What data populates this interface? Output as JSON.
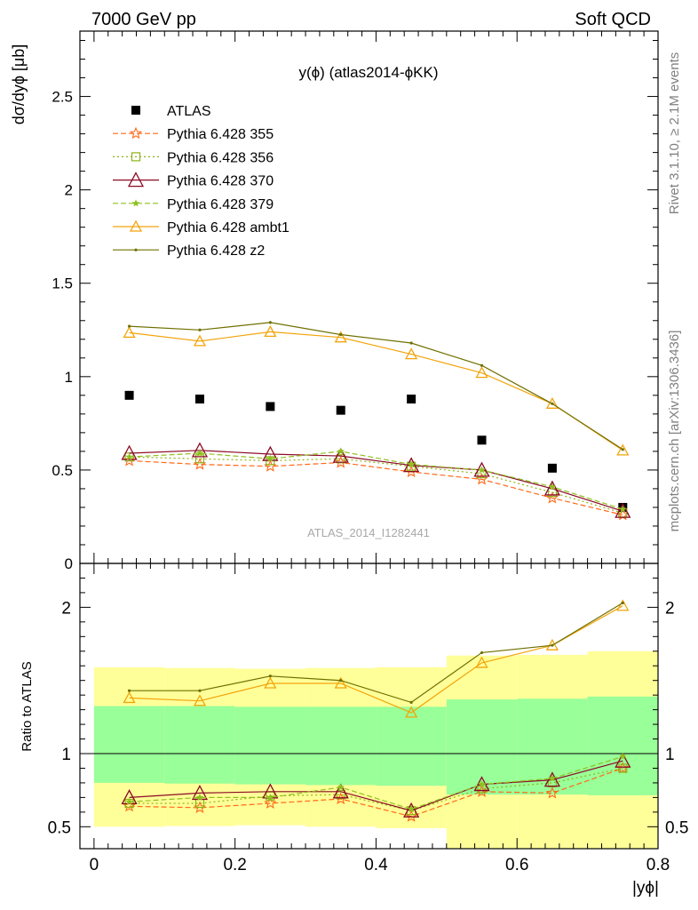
{
  "header": {
    "energy_label": "7000 GeV pp",
    "process_label": "Soft QCD",
    "plot_title": "y(ϕ) (atlas2014-ϕKK)",
    "watermark": "ATLAS_2014_I1282441",
    "rivet_label": "Rivet 3.1.10, ≥ 2.1M events",
    "mcplots_label": "mcplots.cern.ch [arXiv:1306.3436]"
  },
  "chart_data": [
    {
      "type": "scatter",
      "panel": "main",
      "xlabel": "|yϕ|",
      "ylabel": "dσ/dyϕ [μb]",
      "xlim": [
        -0.02,
        0.8
      ],
      "ylim": [
        0,
        2.85
      ],
      "y_ticks": [
        "0",
        "0.5",
        "1",
        "1.5",
        "2",
        "2.5"
      ],
      "x": [
        0.05,
        0.15,
        0.25,
        0.35,
        0.45,
        0.55,
        0.65,
        0.75
      ],
      "series": [
        {
          "name": "ATLAS",
          "color": "#000000",
          "values": [
            0.9,
            0.88,
            0.84,
            0.82,
            0.88,
            0.66,
            0.51,
            0.3
          ]
        },
        {
          "name": "Pythia 6.428 355",
          "color": "#ff6a1a",
          "values": [
            0.55,
            0.53,
            0.52,
            0.54,
            0.49,
            0.45,
            0.35,
            0.26
          ]
        },
        {
          "name": "Pythia 6.428 356",
          "color": "#8db317",
          "values": [
            0.57,
            0.56,
            0.55,
            0.56,
            0.52,
            0.48,
            0.38,
            0.27
          ]
        },
        {
          "name": "Pythia 6.428 370",
          "color": "#8b0a25",
          "values": [
            0.59,
            0.605,
            0.585,
            0.575,
            0.525,
            0.5,
            0.4,
            0.28
          ]
        },
        {
          "name": "Pythia 6.428 379",
          "color": "#8fc020",
          "values": [
            0.57,
            0.59,
            0.56,
            0.6,
            0.53,
            0.5,
            0.41,
            0.29
          ]
        },
        {
          "name": "Pythia 6.428 ambt1",
          "color": "#f2a40b",
          "values": [
            1.235,
            1.19,
            1.24,
            1.21,
            1.12,
            1.02,
            0.855,
            0.605
          ]
        },
        {
          "name": "Pythia 6.428 z2",
          "color": "#707000",
          "values": [
            1.27,
            1.25,
            1.29,
            1.225,
            1.18,
            1.06,
            0.855,
            0.61
          ]
        }
      ]
    },
    {
      "type": "line",
      "panel": "ratio",
      "xlabel": "|yϕ|",
      "ylabel": "Ratio to ATLAS",
      "xlim": [
        -0.02,
        0.8
      ],
      "ylim": [
        0.35,
        2.3
      ],
      "y_ticks": [
        "0.5",
        "1",
        "2"
      ],
      "x_ticks": [
        "0",
        "0.2",
        "0.4",
        "0.6",
        "0.8"
      ],
      "x": [
        0.05,
        0.15,
        0.25,
        0.35,
        0.45,
        0.55,
        0.65,
        0.75
      ],
      "bins": [
        [
          0.0,
          0.1
        ],
        [
          0.1,
          0.2
        ],
        [
          0.2,
          0.3
        ],
        [
          0.3,
          0.4
        ],
        [
          0.4,
          0.5
        ],
        [
          0.5,
          0.6
        ],
        [
          0.6,
          0.7
        ],
        [
          0.7,
          0.8
        ]
      ],
      "band_inner": [
        [
          0.8,
          1.325
        ],
        [
          0.795,
          1.325
        ],
        [
          0.79,
          1.32
        ],
        [
          0.785,
          1.32
        ],
        [
          0.78,
          1.32
        ],
        [
          0.72,
          1.37
        ],
        [
          0.72,
          1.375
        ],
        [
          0.715,
          1.39
        ]
      ],
      "band_outer": [
        [
          0.5,
          1.59
        ],
        [
          0.505,
          1.585
        ],
        [
          0.51,
          1.58
        ],
        [
          0.5,
          1.585
        ],
        [
          0.49,
          1.59
        ],
        [
          0.35,
          1.67
        ],
        [
          0.35,
          1.675
        ],
        [
          0.35,
          1.7
        ]
      ],
      "series": [
        {
          "name": "Pythia 6.428 355",
          "values": [
            0.64,
            0.63,
            0.66,
            0.69,
            0.57,
            0.74,
            0.73,
            0.9
          ]
        },
        {
          "name": "Pythia 6.428 356",
          "values": [
            0.66,
            0.66,
            0.71,
            0.72,
            0.61,
            0.76,
            0.8,
            0.9
          ]
        },
        {
          "name": "Pythia 6.428 370",
          "values": [
            0.7,
            0.73,
            0.74,
            0.74,
            0.61,
            0.79,
            0.82,
            0.95
          ]
        },
        {
          "name": "Pythia 6.428 379",
          "values": [
            0.67,
            0.7,
            0.7,
            0.77,
            0.62,
            0.79,
            0.83,
            0.98
          ]
        },
        {
          "name": "Pythia 6.428 ambt1",
          "values": [
            1.38,
            1.36,
            1.48,
            1.48,
            1.28,
            1.62,
            1.74,
            2.01
          ]
        },
        {
          "name": "Pythia 6.428 z2",
          "values": [
            1.43,
            1.43,
            1.53,
            1.5,
            1.35,
            1.69,
            1.74,
            2.03
          ]
        }
      ]
    }
  ]
}
